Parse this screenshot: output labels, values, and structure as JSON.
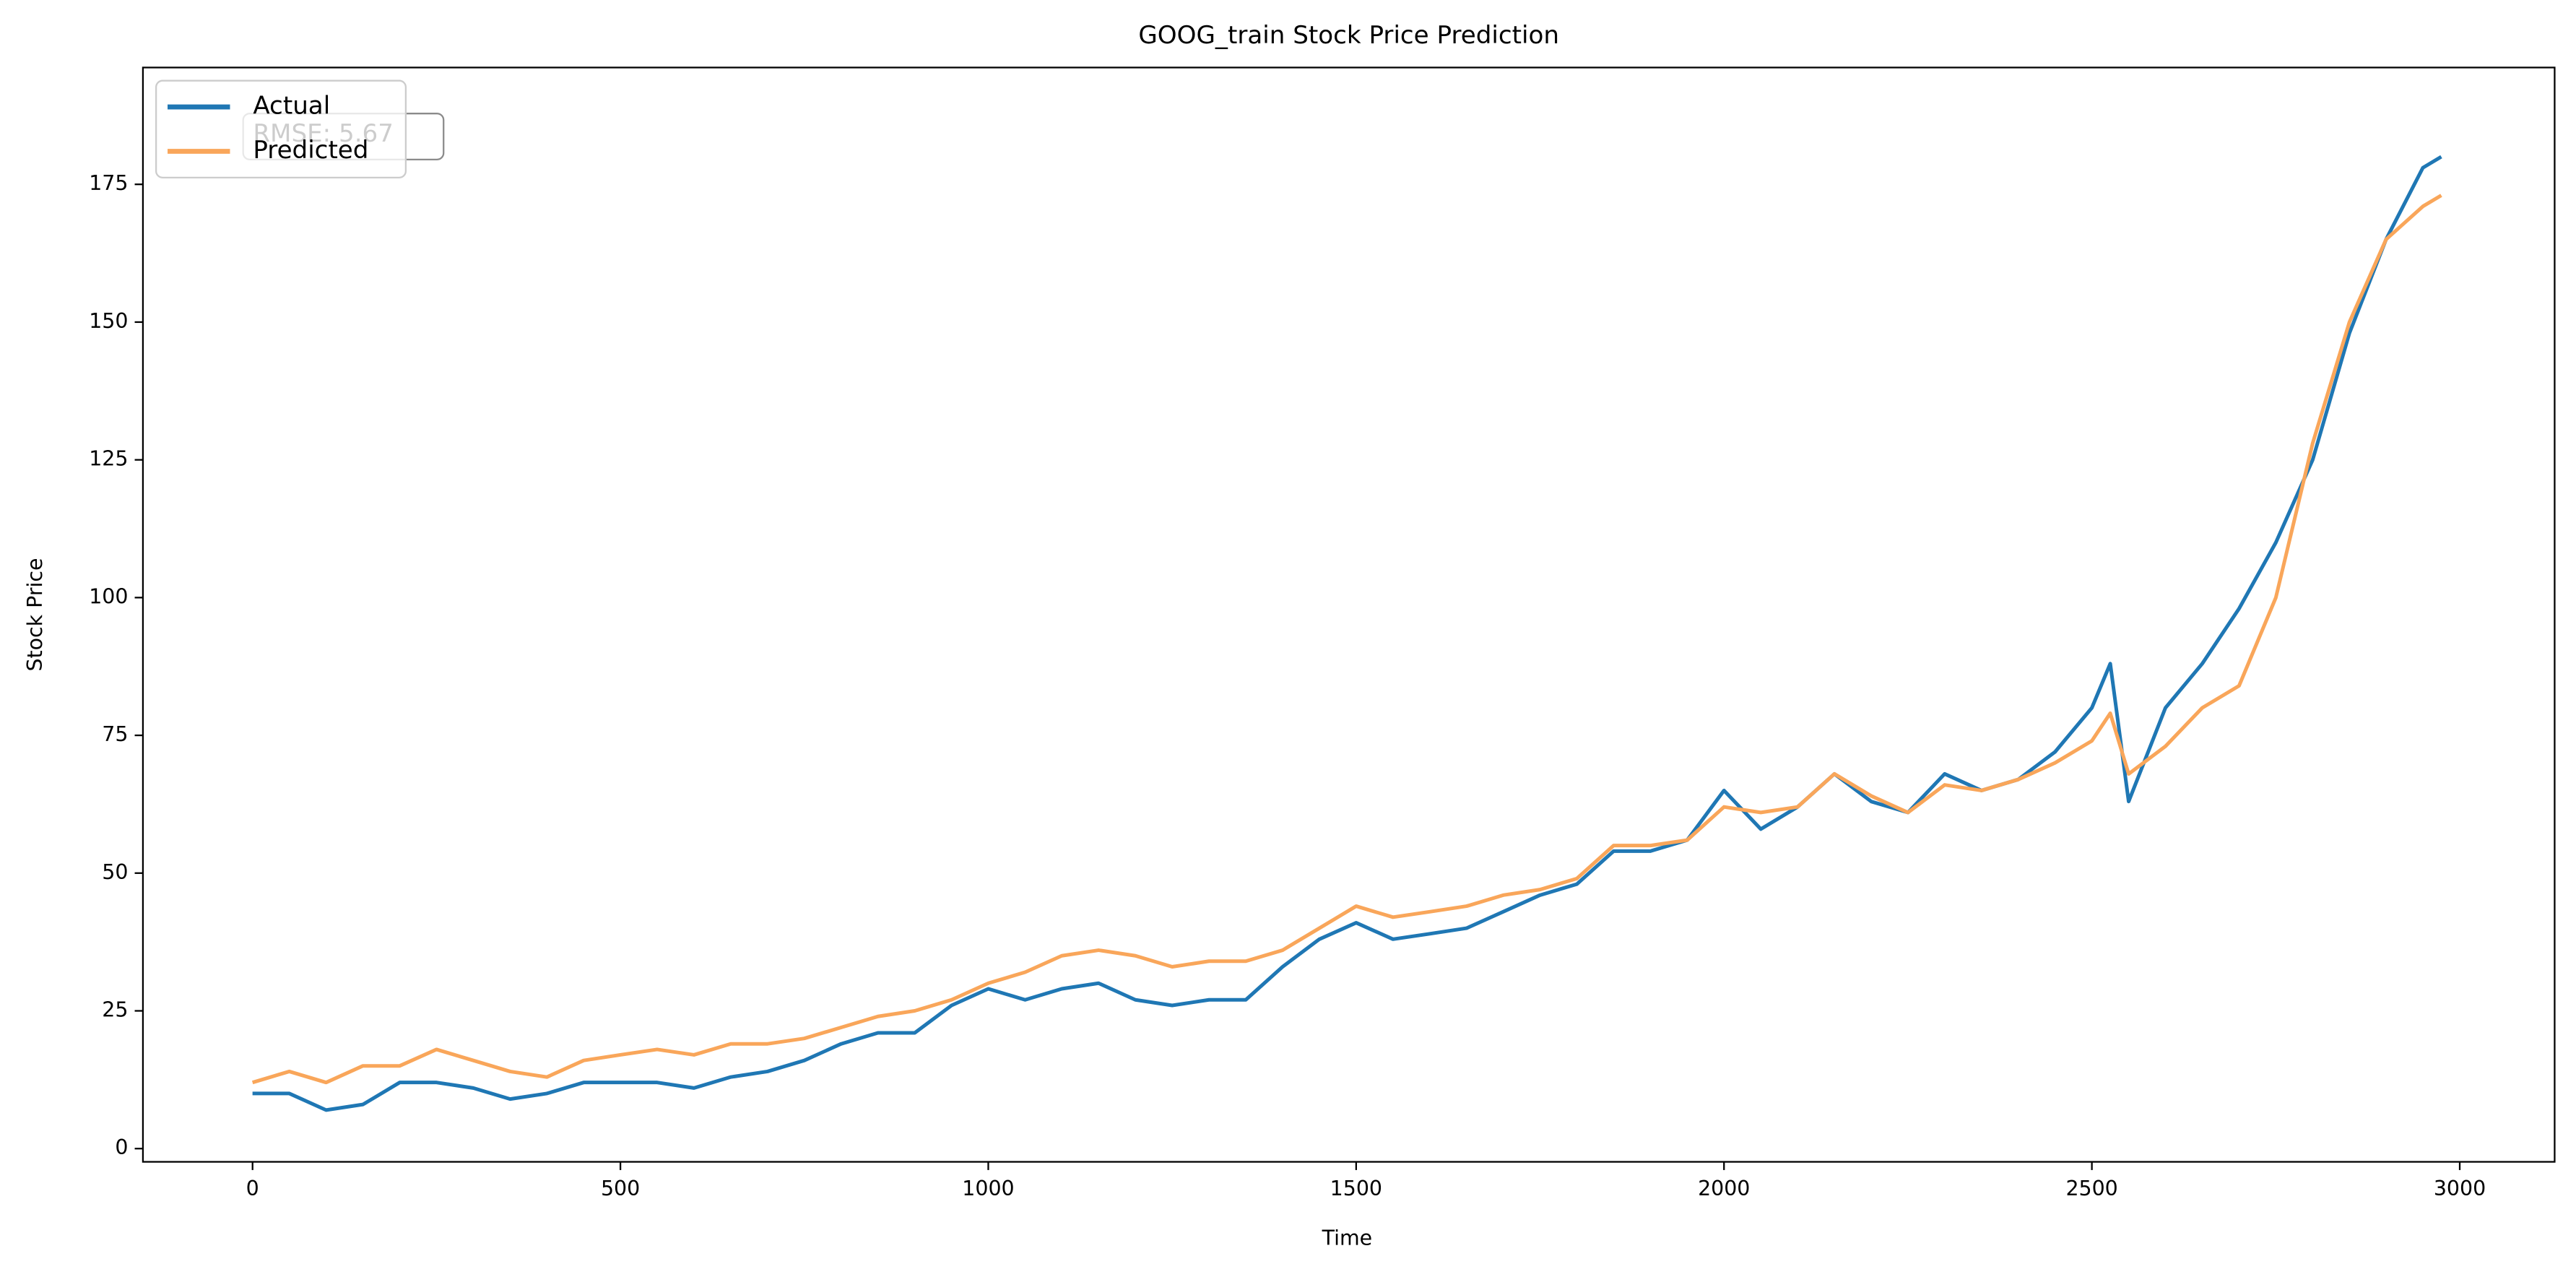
{
  "chart_data": {
    "type": "line",
    "title": "GOOG_train Stock Price Prediction",
    "xlabel": "Time",
    "ylabel": "Stock Price",
    "annotation": "RMSE: 5.67",
    "legend": "upper left",
    "x": [
      0,
      50,
      100,
      150,
      200,
      250,
      300,
      350,
      400,
      450,
      500,
      550,
      600,
      650,
      700,
      750,
      800,
      850,
      900,
      950,
      1000,
      1050,
      1100,
      1150,
      1200,
      1250,
      1300,
      1350,
      1400,
      1450,
      1500,
      1550,
      1600,
      1650,
      1700,
      1750,
      1800,
      1850,
      1900,
      1950,
      2000,
      2050,
      2100,
      2150,
      2200,
      2250,
      2300,
      2350,
      2400,
      2450,
      2500,
      2525,
      2550,
      2600,
      2650,
      2700,
      2750,
      2800,
      2850,
      2900,
      2950,
      2975
    ],
    "series": [
      {
        "name": "Actual",
        "color": "#1f77b4",
        "values": [
          10,
          10,
          7,
          8,
          12,
          12,
          11,
          9,
          10,
          12,
          12,
          12,
          11,
          13,
          14,
          16,
          19,
          21,
          21,
          26,
          29,
          27,
          29,
          30,
          27,
          26,
          27,
          27,
          33,
          38,
          41,
          38,
          39,
          40,
          43,
          46,
          48,
          54,
          54,
          56,
          65,
          58,
          62,
          68,
          63,
          61,
          68,
          65,
          67,
          72,
          80,
          88,
          63,
          80,
          88,
          98,
          110,
          125,
          148,
          165,
          178,
          180
        ]
      },
      {
        "name": "Predicted",
        "color": "#f9a65a",
        "values": [
          12,
          14,
          12,
          15,
          15,
          18,
          16,
          14,
          13,
          16,
          17,
          18,
          17,
          19,
          19,
          20,
          22,
          24,
          25,
          27,
          30,
          32,
          35,
          36,
          35,
          33,
          34,
          34,
          36,
          40,
          44,
          42,
          43,
          44,
          46,
          47,
          49,
          55,
          55,
          56,
          62,
          61,
          62,
          68,
          64,
          61,
          66,
          65,
          67,
          70,
          74,
          79,
          68,
          73,
          80,
          84,
          100,
          128,
          150,
          165,
          171,
          173
        ]
      }
    ],
    "xlim": [
      -149,
      3129
    ],
    "xticks": [
      0,
      500,
      1000,
      1500,
      2000,
      2500,
      3000
    ],
    "ylim": [
      -2.4,
      196.2
    ],
    "yticks": [
      0,
      25,
      50,
      75,
      100,
      125,
      150,
      175
    ]
  }
}
